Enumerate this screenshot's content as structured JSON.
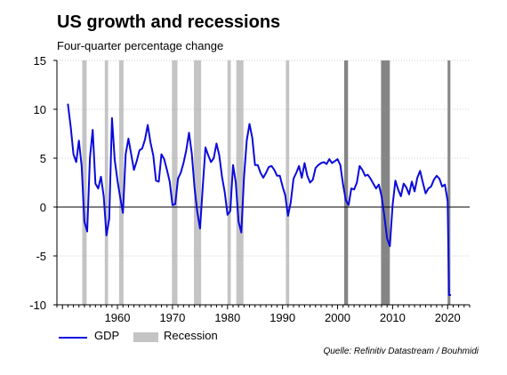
{
  "title": "US growth and recessions",
  "subtitle": "Four-quarter percentage change",
  "source": "Quelle: Refinitiv Datastream / Bouhmidi",
  "colors": {
    "gdp": "#0a0adc",
    "recession_light": "#c4c4c4",
    "recession_dark": "#858585"
  },
  "chart_data": {
    "type": "line",
    "title": "US growth and recessions",
    "subtitle": "Four-quarter percentage change",
    "xlabel": "",
    "ylabel": "",
    "xlim": [
      1949,
      2024
    ],
    "ylim": [
      -10,
      15
    ],
    "yticks": [
      15,
      10,
      5,
      0,
      -5,
      -10
    ],
    "xticks": [
      1960,
      1970,
      1980,
      1990,
      2000,
      2010,
      2020
    ],
    "grid": "horizontal dotted",
    "legend": {
      "position": "bottom-left",
      "items": [
        "GDP",
        "Recession"
      ]
    },
    "series": [
      {
        "name": "GDP",
        "x": [
          1951.0,
          1951.5,
          1952.0,
          1952.5,
          1953.0,
          1953.5,
          1954.0,
          1954.5,
          1955.0,
          1955.5,
          1956.0,
          1956.5,
          1957.0,
          1957.5,
          1958.0,
          1958.5,
          1959.0,
          1959.5,
          1960.0,
          1960.5,
          1961.0,
          1961.5,
          1962.0,
          1962.5,
          1963.0,
          1963.5,
          1964.0,
          1964.5,
          1965.0,
          1965.5,
          1966.0,
          1966.5,
          1967.0,
          1967.5,
          1968.0,
          1968.5,
          1969.0,
          1969.5,
          1970.0,
          1970.5,
          1971.0,
          1971.5,
          1972.0,
          1972.5,
          1973.0,
          1973.5,
          1974.0,
          1974.5,
          1975.0,
          1975.5,
          1976.0,
          1976.5,
          1977.0,
          1977.5,
          1978.0,
          1978.5,
          1979.0,
          1979.5,
          1980.0,
          1980.5,
          1981.0,
          1981.5,
          1982.0,
          1982.5,
          1983.0,
          1983.5,
          1984.0,
          1984.5,
          1985.0,
          1985.5,
          1986.0,
          1986.5,
          1987.0,
          1987.5,
          1988.0,
          1988.5,
          1989.0,
          1989.5,
          1990.0,
          1990.5,
          1991.0,
          1991.5,
          1992.0,
          1992.5,
          1993.0,
          1993.5,
          1994.0,
          1994.5,
          1995.0,
          1995.5,
          1996.0,
          1996.5,
          1997.0,
          1997.5,
          1998.0,
          1998.5,
          1999.0,
          1999.5,
          2000.0,
          2000.5,
          2001.0,
          2001.5,
          2002.0,
          2002.5,
          2003.0,
          2003.5,
          2004.0,
          2004.5,
          2005.0,
          2005.5,
          2006.0,
          2006.5,
          2007.0,
          2007.5,
          2008.0,
          2008.5,
          2009.0,
          2009.5,
          2010.0,
          2010.5,
          2011.0,
          2011.5,
          2012.0,
          2012.5,
          2013.0,
          2013.5,
          2014.0,
          2014.5,
          2015.0,
          2015.5,
          2016.0,
          2016.5,
          2017.0,
          2017.5,
          2018.0,
          2018.5,
          2019.0,
          2019.5,
          2020.0,
          2020.25,
          2020.5
        ],
        "values": [
          10.5,
          8.2,
          5.4,
          4.6,
          6.8,
          4.2,
          -1.5,
          -2.5,
          5.0,
          7.9,
          2.4,
          1.9,
          3.1,
          1.1,
          -2.9,
          -1.2,
          9.1,
          4.8,
          2.7,
          1.0,
          -0.6,
          5.4,
          7.0,
          5.4,
          3.8,
          4.7,
          5.8,
          6.0,
          6.9,
          8.4,
          6.6,
          5.3,
          2.7,
          2.6,
          5.4,
          4.9,
          3.8,
          2.6,
          0.2,
          0.3,
          2.9,
          3.5,
          4.5,
          5.8,
          7.6,
          5.5,
          2.0,
          -0.5,
          -2.2,
          2.0,
          6.1,
          5.3,
          4.6,
          5.0,
          6.5,
          5.3,
          3.1,
          1.5,
          -0.8,
          -0.4,
          4.3,
          2.5,
          -1.5,
          -2.6,
          3.0,
          6.8,
          8.5,
          7.1,
          4.3,
          4.3,
          3.5,
          3.0,
          3.5,
          4.1,
          4.2,
          3.8,
          3.2,
          3.2,
          2.1,
          1.2,
          -0.9,
          0.5,
          2.9,
          3.5,
          4.2,
          3.0,
          4.5,
          3.2,
          2.5,
          2.8,
          4.0,
          4.3,
          4.5,
          4.6,
          4.4,
          4.9,
          4.5,
          4.7,
          4.9,
          4.3,
          2.3,
          0.7,
          0.2,
          1.9,
          1.8,
          2.5,
          4.2,
          3.8,
          3.2,
          3.3,
          2.9,
          2.4,
          1.9,
          2.3,
          1.1,
          -0.9,
          -3.2,
          -4.0,
          0.2,
          2.7,
          1.8,
          1.1,
          2.4,
          2.0,
          1.3,
          2.6,
          1.6,
          3.0,
          3.7,
          2.5,
          1.4,
          1.9,
          2.1,
          2.8,
          3.2,
          2.9,
          2.1,
          2.3,
          0.6,
          -9.0,
          -9.0
        ]
      }
    ],
    "recessions": [
      {
        "start": 1953.6,
        "end": 1954.4,
        "shade": "light"
      },
      {
        "start": 1957.7,
        "end": 1958.3,
        "shade": "light"
      },
      {
        "start": 1960.3,
        "end": 1961.1,
        "shade": "light"
      },
      {
        "start": 1969.9,
        "end": 1970.9,
        "shade": "light"
      },
      {
        "start": 1973.9,
        "end": 1975.2,
        "shade": "light"
      },
      {
        "start": 1980.0,
        "end": 1980.6,
        "shade": "light"
      },
      {
        "start": 1981.6,
        "end": 1982.9,
        "shade": "light"
      },
      {
        "start": 1990.6,
        "end": 1991.2,
        "shade": "light"
      },
      {
        "start": 2001.2,
        "end": 2001.9,
        "shade": "dark"
      },
      {
        "start": 2007.9,
        "end": 2009.5,
        "shade": "dark"
      },
      {
        "start": 2020.0,
        "end": 2020.5,
        "shade": "dark"
      }
    ]
  },
  "legend": {
    "gdp_label": "GDP",
    "recession_label": "Recession"
  }
}
